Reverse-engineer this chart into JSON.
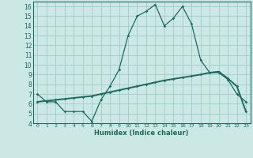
{
  "title": "",
  "xlabel": "Humidex (Indice chaleur)",
  "bg_color": "#cce8e4",
  "grid_color": "#a0ccc8",
  "line_color": "#1a6b60",
  "x_curve": [
    0,
    1,
    2,
    3,
    4,
    5,
    6,
    7,
    8,
    9,
    10,
    11,
    12,
    13,
    14,
    15,
    16,
    17,
    18,
    19,
    20,
    21,
    22,
    23
  ],
  "y_curve": [
    7.0,
    6.2,
    6.2,
    5.2,
    5.2,
    5.2,
    4.2,
    6.4,
    7.8,
    9.5,
    13.0,
    15.0,
    15.5,
    16.2,
    14.0,
    14.8,
    16.0,
    14.2,
    10.5,
    9.2,
    9.2,
    8.5,
    7.0,
    6.2
  ],
  "x_line": [
    0,
    1,
    2,
    3,
    4,
    5,
    6,
    7,
    8,
    9,
    10,
    11,
    12,
    13,
    14,
    15,
    16,
    17,
    18,
    19,
    20,
    21,
    22,
    23
  ],
  "y_line": [
    6.2,
    6.3,
    6.4,
    6.5,
    6.6,
    6.7,
    6.8,
    7.0,
    7.2,
    7.4,
    7.6,
    7.8,
    8.0,
    8.2,
    8.4,
    8.55,
    8.7,
    8.85,
    9.0,
    9.2,
    9.3,
    8.6,
    7.8,
    5.2
  ],
  "ylim": [
    4,
    16.5
  ],
  "xlim": [
    -0.5,
    23.5
  ],
  "yticks": [
    4,
    5,
    6,
    7,
    8,
    9,
    10,
    11,
    12,
    13,
    14,
    15,
    16
  ],
  "xtick_labels": [
    "0",
    "1",
    "2",
    "3",
    "4",
    "5",
    "6",
    "7",
    "8",
    "9",
    "10",
    "11",
    "12",
    "13",
    "14",
    "15",
    "16",
    "17",
    "18",
    "19",
    "20",
    "21",
    "22",
    "23"
  ]
}
